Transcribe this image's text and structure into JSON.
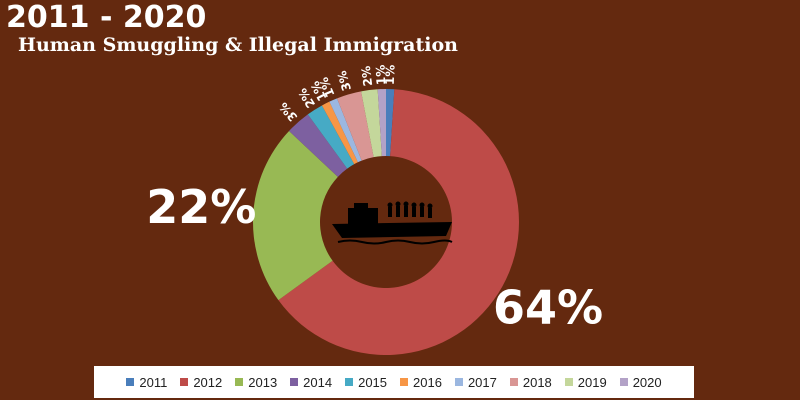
{
  "header": {
    "title": "2011 - 2020",
    "subtitle": "Human Smuggling & Illegal Immigration"
  },
  "center_icon": "boat-with-migrants-icon",
  "chart_data": {
    "type": "pie",
    "style": "donut",
    "categories": [
      "2011",
      "2012",
      "2013",
      "2014",
      "2015",
      "2016",
      "2017",
      "2018",
      "2019",
      "2020"
    ],
    "values": [
      1,
      64,
      22,
      3,
      2,
      1,
      1,
      3,
      2,
      1
    ],
    "labels": [
      "1%",
      "64%",
      "22%",
      "3%",
      "2%",
      "1%",
      "1%",
      "3%",
      "2%",
      "1%"
    ],
    "colors": [
      "#4a7ebb",
      "#be4b48",
      "#98b954",
      "#7d60a0",
      "#46aac5",
      "#f79646",
      "#9bb7e0",
      "#d99694",
      "#c4d79b",
      "#b3a2c7"
    ],
    "legend": "bottom"
  }
}
